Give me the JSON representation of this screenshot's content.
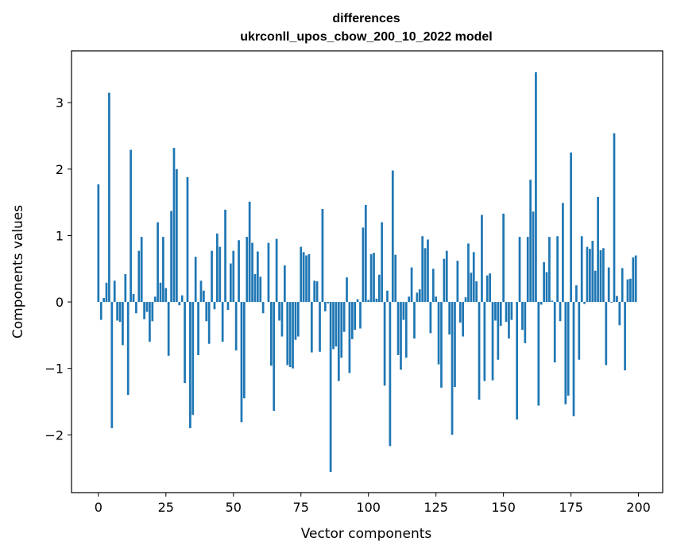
{
  "chart_data": {
    "type": "bar",
    "title_line1": "differences",
    "title_line2": "ukrconll_upos_cbow_200_10_2022 model",
    "xlabel": "Vector components",
    "ylabel": "Components values",
    "xlim": [
      -9.95,
      208.95
    ],
    "ylim": [
      -2.87,
      3.78
    ],
    "xticks": [
      0,
      25,
      50,
      75,
      100,
      125,
      150,
      175,
      200
    ],
    "xtick_labels": [
      "0",
      "25",
      "50",
      "75",
      "100",
      "125",
      "150",
      "175",
      "200"
    ],
    "yticks": [
      -2,
      -1,
      0,
      1,
      2,
      3
    ],
    "ytick_labels": [
      "−2",
      "−1",
      "0",
      "1",
      "2",
      "3"
    ],
    "bar_color": "#1f77b4",
    "x": [
      0,
      1,
      2,
      3,
      4,
      5,
      6,
      7,
      8,
      9,
      10,
      11,
      12,
      13,
      14,
      15,
      16,
      17,
      18,
      19,
      20,
      21,
      22,
      23,
      24,
      25,
      26,
      27,
      28,
      29,
      30,
      31,
      32,
      33,
      34,
      35,
      36,
      37,
      38,
      39,
      40,
      41,
      42,
      43,
      44,
      45,
      46,
      47,
      48,
      49,
      50,
      51,
      52,
      53,
      54,
      55,
      56,
      57,
      58,
      59,
      60,
      61,
      62,
      63,
      64,
      65,
      66,
      67,
      68,
      69,
      70,
      71,
      72,
      73,
      74,
      75,
      76,
      77,
      78,
      79,
      80,
      81,
      82,
      83,
      84,
      85,
      86,
      87,
      88,
      89,
      90,
      91,
      92,
      93,
      94,
      95,
      96,
      97,
      98,
      99,
      100,
      101,
      102,
      103,
      104,
      105,
      106,
      107,
      108,
      109,
      110,
      111,
      112,
      113,
      114,
      115,
      116,
      117,
      118,
      119,
      120,
      121,
      122,
      123,
      124,
      125,
      126,
      127,
      128,
      129,
      130,
      131,
      132,
      133,
      134,
      135,
      136,
      137,
      138,
      139,
      140,
      141,
      142,
      143,
      144,
      145,
      146,
      147,
      148,
      149,
      150,
      151,
      152,
      153,
      154,
      155,
      156,
      157,
      158,
      159,
      160,
      161,
      162,
      163,
      164,
      165,
      166,
      167,
      168,
      169,
      170,
      171,
      172,
      173,
      174,
      175,
      176,
      177,
      178,
      179,
      180,
      181,
      182,
      183,
      184,
      185,
      186,
      187,
      188,
      189,
      190,
      191,
      192,
      193,
      194,
      195,
      196,
      197,
      198,
      199
    ],
    "values": [
      1.77,
      -0.27,
      0.06,
      0.29,
      3.15,
      -1.9,
      0.32,
      -0.28,
      -0.3,
      -0.65,
      0.42,
      -1.4,
      2.29,
      0.12,
      -0.17,
      0.77,
      0.98,
      -0.26,
      -0.15,
      -0.6,
      -0.29,
      0.08,
      1.2,
      0.29,
      0.98,
      0.21,
      -0.81,
      1.37,
      2.32,
      2.0,
      -0.05,
      0.1,
      -1.22,
      1.88,
      -1.9,
      -1.7,
      0.68,
      -0.8,
      0.32,
      0.17,
      -0.29,
      -0.63,
      0.77,
      -0.11,
      1.03,
      0.83,
      -0.6,
      1.39,
      -0.12,
      0.58,
      0.77,
      -0.73,
      0.93,
      -1.81,
      -1.45,
      0.98,
      1.51,
      0.89,
      0.42,
      0.76,
      0.38,
      -0.17,
      0.0,
      0.89,
      -0.96,
      -1.64,
      0.95,
      -0.28,
      -0.52,
      0.55,
      -0.95,
      -0.98,
      -1.0,
      -0.57,
      -0.52,
      0.83,
      0.75,
      0.7,
      0.72,
      -0.76,
      0.32,
      0.31,
      -0.75,
      1.4,
      -0.14,
      -0.02,
      -2.56,
      -0.71,
      -0.67,
      -1.19,
      -0.84,
      -0.45,
      0.37,
      -1.07,
      -0.56,
      -0.42,
      0.04,
      -0.4,
      1.12,
      1.46,
      0.03,
      0.72,
      0.74,
      0.05,
      0.41,
      1.2,
      -1.26,
      0.17,
      -2.17,
      1.98,
      0.71,
      -0.8,
      -1.02,
      -0.27,
      -0.84,
      0.08,
      0.52,
      -0.55,
      0.14,
      0.19,
      0.99,
      0.81,
      0.94,
      -0.47,
      0.5,
      0.08,
      -0.94,
      -1.29,
      0.65,
      0.77,
      -0.49,
      -2.0,
      -1.28,
      0.62,
      -0.31,
      -0.52,
      0.07,
      0.88,
      0.44,
      0.75,
      0.31,
      -1.47,
      1.31,
      -1.19,
      0.4,
      0.43,
      -1.18,
      -0.28,
      -0.87,
      -0.36,
      1.33,
      -0.3,
      -0.55,
      -0.27,
      0.0,
      -1.77,
      0.98,
      -0.42,
      -0.62,
      0.98,
      1.84,
      1.36,
      3.46,
      -1.56,
      -0.04,
      0.6,
      0.45,
      0.98,
      0.02,
      -0.91,
      0.99,
      -0.29,
      1.49,
      -1.54,
      -1.41,
      2.25,
      -1.72,
      0.25,
      -0.87,
      0.99,
      -0.03,
      0.83,
      0.8,
      0.92,
      0.47,
      1.58,
      0.78,
      0.81,
      -0.95,
      0.52,
      -0.01,
      2.54,
      0.09,
      -0.35,
      0.51,
      -1.03,
      0.34,
      0.35,
      0.67,
      0.7
    ]
  }
}
